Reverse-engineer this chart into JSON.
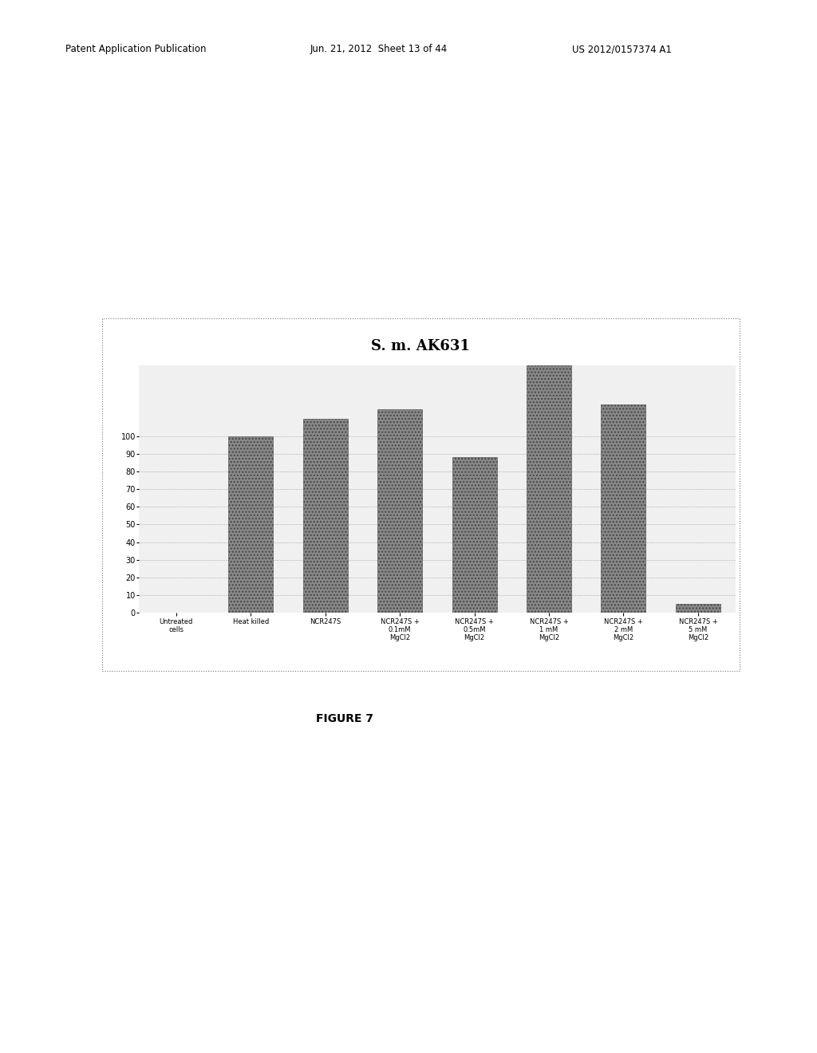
{
  "title": "S. m. AK631",
  "categories": [
    "Untreated\ncells",
    "Heat killed",
    "NCR247S",
    "NCR247S +\n0.1mM\nMgCl2",
    "NCR247S +\n0.5mM\nMgCl2",
    "NCR247S +\n1 mM\nMgCl2",
    "NCR247S +\n2 mM\nMgCl2",
    "NCR247S +\n5 mM\nMgCl2"
  ],
  "values": [
    0,
    100,
    110,
    115,
    88,
    140,
    118,
    5
  ],
  "ylim": [
    0,
    140
  ],
  "yticks": [
    0,
    10,
    20,
    30,
    40,
    50,
    60,
    70,
    80,
    90,
    100
  ],
  "bar_color": "#999999",
  "bg_color": "#f0f0f0",
  "title_fontsize": 13,
  "tick_fontsize": 7,
  "label_fontsize": 6,
  "figure_bg": "#ffffff",
  "header_left": "Patent Application Publication",
  "header_mid": "Jun. 21, 2012  Sheet 13 of 44",
  "header_right": "US 2012/0157374 A1",
  "figure_caption": "FIGURE 7"
}
